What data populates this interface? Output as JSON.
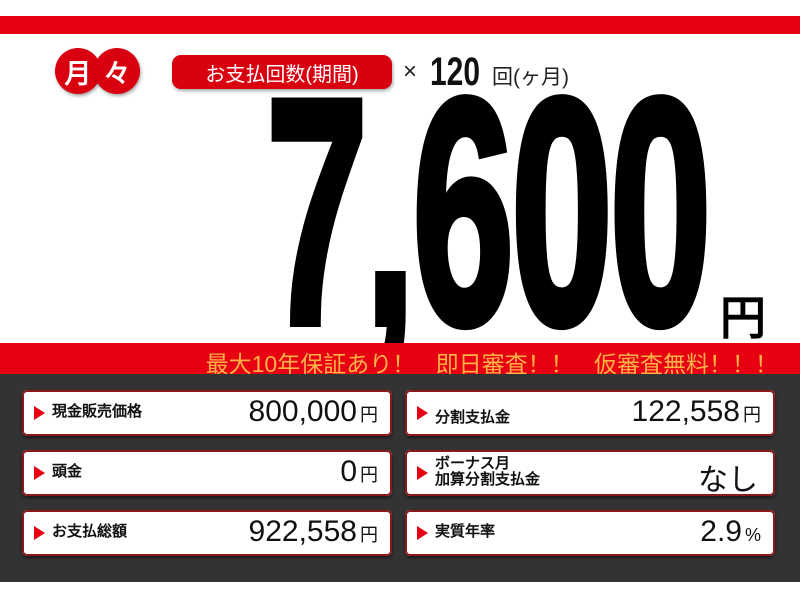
{
  "header": {
    "monthly_badge": [
      "月",
      "々"
    ],
    "payments_label": "お支払回数(期間)",
    "times": "×",
    "payments_count": "120",
    "payments_unit": "回(ヶ月)"
  },
  "monthly_price": {
    "amount": "7,600",
    "unit": "円"
  },
  "banner": "最大10年保証あり！ 即日審査！！ 仮審査無料！！！",
  "details": [
    {
      "label": "現金販売価格",
      "value": "800,000",
      "unit": "円"
    },
    {
      "label": "分割支払金",
      "value": "122,558",
      "unit": "円"
    },
    {
      "label": "頭金",
      "value": "0",
      "unit": "円"
    },
    {
      "label": "ボーナス月\n加算分割支払金",
      "value": "なし",
      "unit": ""
    },
    {
      "label": "お支払総額",
      "value": "922,558",
      "unit": "円"
    },
    {
      "label": "実質年率",
      "value": "2.9",
      "unit": "%"
    }
  ],
  "colors": {
    "accent": "#e60012",
    "banner_text": "#ffb347",
    "panel": "#333333"
  }
}
